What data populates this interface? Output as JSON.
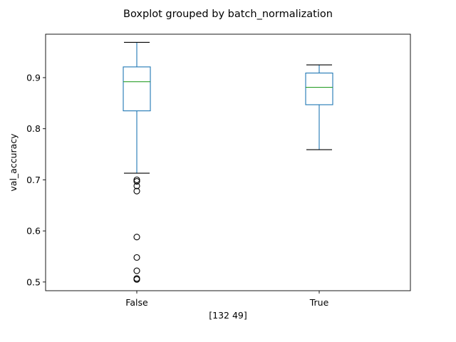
{
  "chart_data": {
    "type": "boxplot",
    "title": "Boxplot grouped by batch_normalization",
    "xlabel": "[132  49]",
    "ylabel": "val_accuracy",
    "categories": [
      "False",
      "True"
    ],
    "ylim": [
      0.483,
      0.985
    ],
    "y_ticks": [
      0.5,
      0.6,
      0.7,
      0.8,
      0.9
    ],
    "y_tick_labels": [
      "0.5",
      "0.6",
      "0.7",
      "0.8",
      "0.9"
    ],
    "grid": false,
    "legend": "none",
    "colors": {
      "box": "#1f77b4",
      "median": "#2ca02c",
      "whisker": "#1f77b4",
      "cap": "#000000",
      "outlier": "#000000"
    },
    "boxes": [
      {
        "category": "False",
        "whisker_low": 0.713,
        "q1": 0.835,
        "median": 0.892,
        "q3": 0.921,
        "whisker_high": 0.969,
        "outliers": [
          0.7,
          0.697,
          0.688,
          0.678,
          0.588,
          0.548,
          0.522,
          0.507,
          0.505
        ]
      },
      {
        "category": "True",
        "whisker_low": 0.759,
        "q1": 0.847,
        "median": 0.881,
        "q3": 0.909,
        "whisker_high": 0.925,
        "outliers": []
      }
    ]
  }
}
